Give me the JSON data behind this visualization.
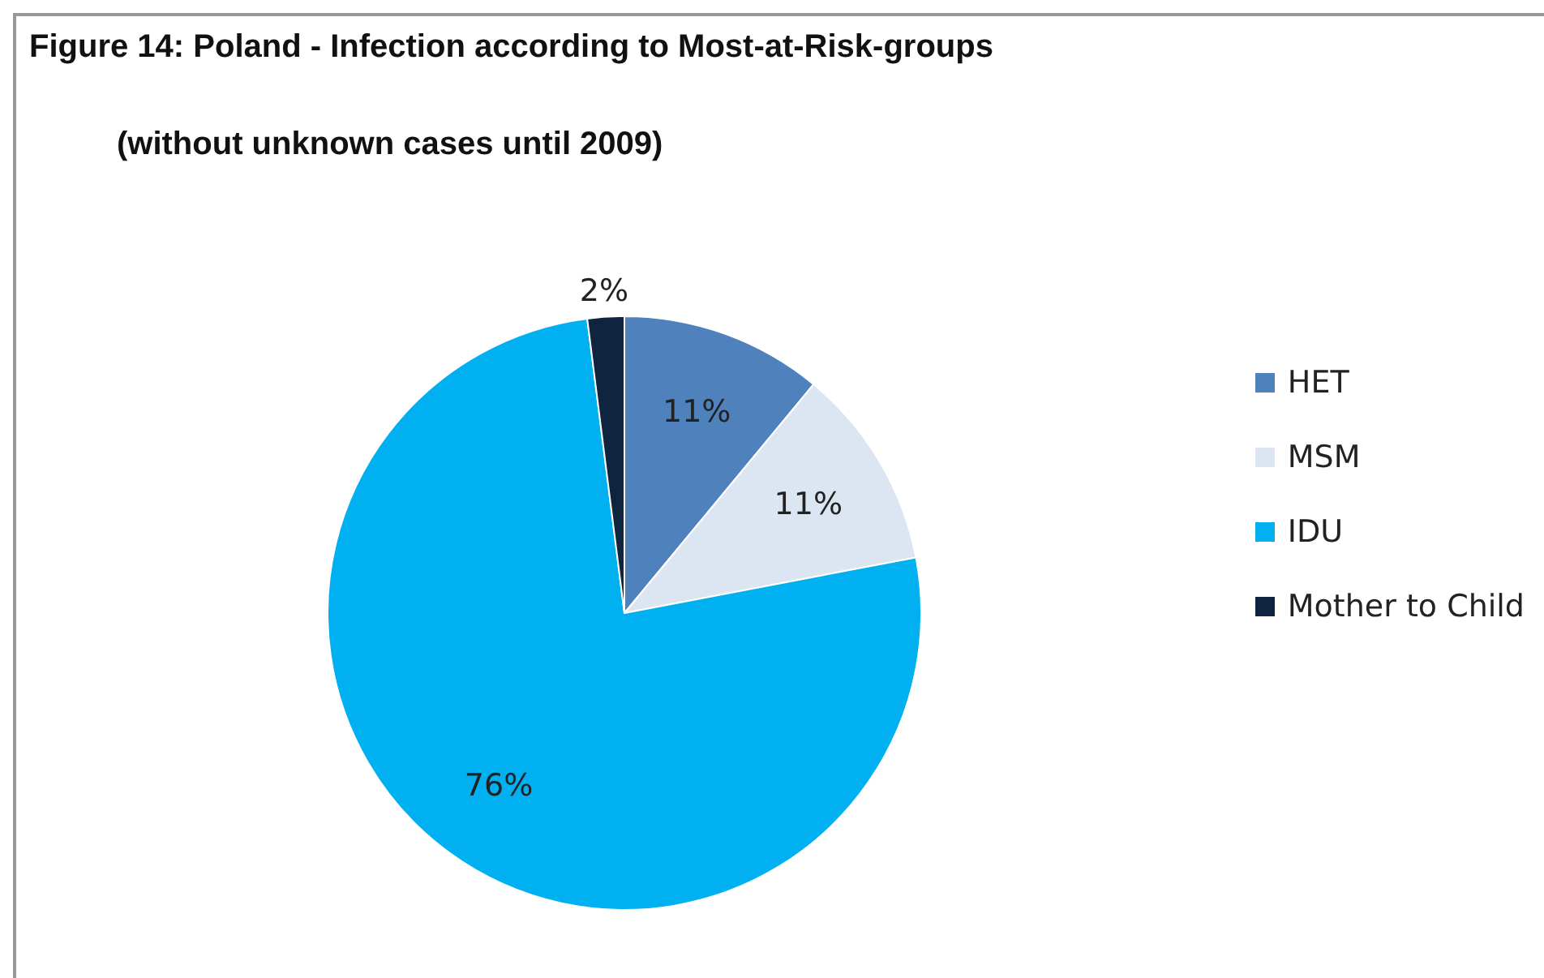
{
  "chart_data": {
    "type": "pie",
    "title": "Figure 14: Poland  - Infection according to Most-at-Risk-groups",
    "subtitle": "(without unknown cases until 2009)",
    "categories": [
      "HET",
      "MSM",
      "IDU",
      "Mother to Child"
    ],
    "values": [
      11,
      11,
      76,
      2
    ],
    "colors": [
      "#4f81bd",
      "#dce6f2",
      "#00b0f0",
      "#0f243e"
    ],
    "value_labels": [
      "11%",
      "11%",
      "76%",
      "2%"
    ],
    "legend": "right"
  }
}
